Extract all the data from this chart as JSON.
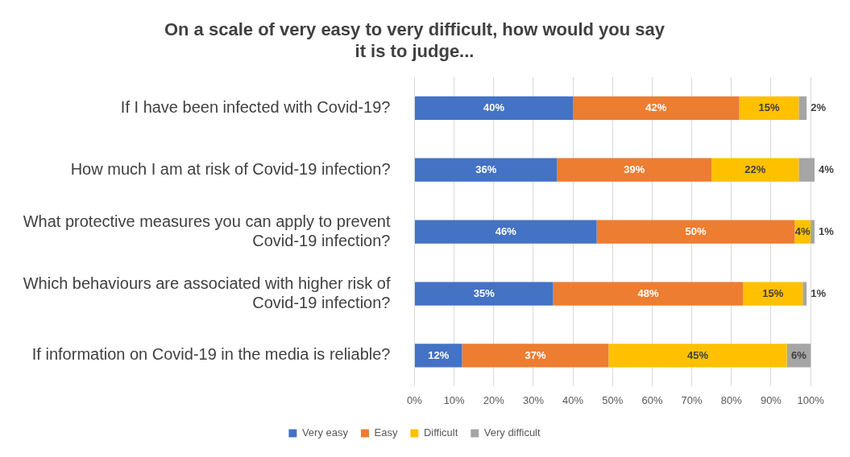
{
  "chart_data": {
    "type": "bar",
    "orientation": "horizontal",
    "stacked": true,
    "title": "On a scale of very easy to very difficult, how would you say it is to judge...",
    "categories": [
      "If I have been infected with Covid-19?",
      "How much I am at risk of Covid-19 infection?",
      "What protective measures you can apply to prevent Covid-19 infection?",
      "Which behaviours are associated with higher risk of Covid-19 infection?",
      "If information on Covid-19 in the media is reliable?"
    ],
    "series": [
      {
        "name": "Very easy",
        "color": "#4472c4",
        "values": [
          40,
          36,
          46,
          35,
          12
        ],
        "value_labels": [
          "40%",
          "36%",
          "46%",
          "35%",
          "12%"
        ]
      },
      {
        "name": "Easy",
        "color": "#ed7d31",
        "values": [
          42,
          39,
          50,
          48,
          37
        ],
        "value_labels": [
          "42%",
          "39%",
          "50%",
          "48%",
          "37%"
        ]
      },
      {
        "name": "Difficult",
        "color": "#ffc000",
        "values": [
          15,
          22,
          4,
          15,
          45
        ],
        "value_labels": [
          "15%",
          "22%",
          "4%",
          "15%",
          "45%"
        ]
      },
      {
        "name": "Very difficult",
        "color": "#a5a5a5",
        "values": [
          2,
          4,
          1,
          1,
          6
        ],
        "value_labels": [
          "2%",
          "4%",
          "1%",
          "1%",
          "6%"
        ]
      }
    ],
    "xlim": [
      0,
      101
    ],
    "xticks": [
      {
        "value": 0,
        "label": "0%"
      },
      {
        "value": 10,
        "label": "10%"
      },
      {
        "value": 20,
        "label": "20%"
      },
      {
        "value": 30,
        "label": "30%"
      },
      {
        "value": 40,
        "label": "40%"
      },
      {
        "value": 50,
        "label": "50%"
      },
      {
        "value": 60,
        "label": "60%"
      },
      {
        "value": 70,
        "label": "70%"
      },
      {
        "value": 80,
        "label": "80%"
      },
      {
        "value": 90,
        "label": "90%"
      },
      {
        "value": 100,
        "label": "100%"
      }
    ],
    "grid": "x",
    "legend": "bottom"
  }
}
